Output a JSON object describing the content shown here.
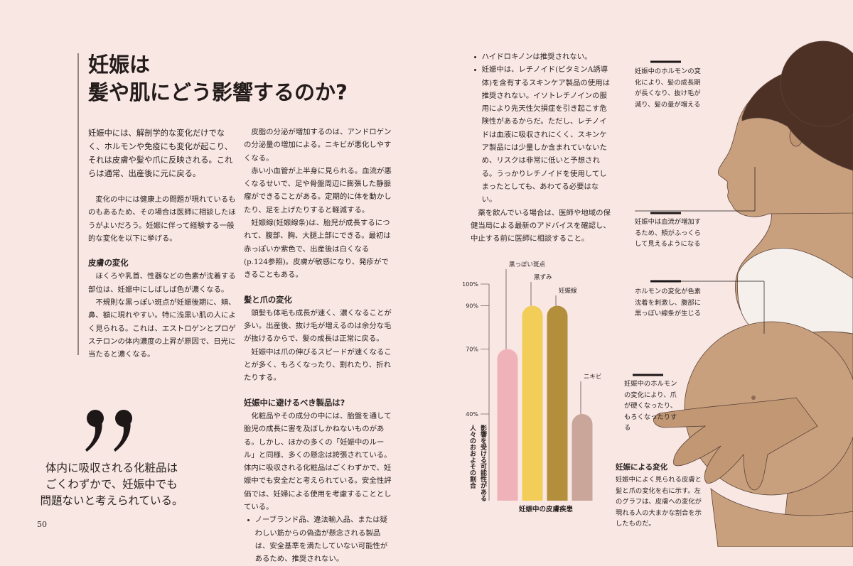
{
  "left_page": {
    "title_lines": [
      "妊娠は",
      "髪や肌にどう影響するのか?"
    ],
    "intro": "妊娠中には、解剖学的な変化だけでなく、ホルモンや免疫にも変化が起こり、それは皮膚や髪や爪に反映される。これらは通常、出産後に元に戻る。",
    "columns": [
      [
        {
          "paragraph": "変化の中には健康上の問題が現れているものもあるため、その場合は医師に相談したほうがよいだろう。妊娠に伴って経験する一般的な変化を以下に挙げる。"
        },
        {
          "heading": "皮膚の変化"
        },
        {
          "paragraph": "ほくろや乳首、性器などの色素が沈着する部位は、妊娠中にしばしば色が濃くなる。"
        },
        {
          "paragraph": "不規則な黒っぽい斑点が妊娠後期に、頬、鼻、額に現れやすい。特に浅黒い肌の人によく見られる。これは、エストロゲンとプロゲステロンの体内濃度の上昇が原因で、日光に当たると濃くなる。"
        }
      ],
      [
        {
          "paragraph": "皮脂の分泌が増加するのは、アンドロゲンの分泌量の増加による。ニキビが悪化しやすくなる。"
        },
        {
          "paragraph": "赤い小血管が上半身に見られる。血流が悪くなるせいで、足や骨盤周辺に膨張した静脈瘤ができることがある。定期的に体を動かしたり、足を上げたりすると軽減する。"
        },
        {
          "paragraph": "妊娠線(妊娠線条)は、胎児が成長するにつれて、腹部、胸、大腿上部にできる。最初は赤っぽいか紫色で、出産後は白くなる(p.124参照)。皮膚が敏感になり、発疹ができることもある。"
        },
        {
          "heading": "髪と爪の変化"
        },
        {
          "paragraph": "頭髪も体毛も成長が速く、濃くなることが多い。出産後、抜け毛が増えるのは余分な毛が抜けるからで、髪の成長は正常に戻る。"
        },
        {
          "paragraph": "妊娠中は爪の伸びるスピードが速くなることが多く、もろくなったり、割れたり、折れたりする。"
        },
        {
          "heading": "妊娠中に避けるべき製品は?"
        },
        {
          "paragraph": "化粧品やその成分の中には、胎盤を通して胎児の成長に害を及ぼしかねないものがある。しかし、ほかの多くの「妊娠中のルール」と同様、多くの懸念は誇張されている。体内に吸収される化粧品はごくわずかで、妊娠中でも安全だと考えられている。安全性評価では、妊婦による使用を考慮することとしている。"
        },
        {
          "bullet": "ノーブランド品、違法輸入品、または疑わしい筋からの偽造が懸念される製品は、安全基準を満たしていない可能性があるため、推奨されない。"
        }
      ]
    ],
    "pull_quote": [
      "体内に吸収される化粧品は",
      "ごくわずかで、妊娠中でも",
      "問題ないと考えられている。"
    ],
    "page_number": "50"
  },
  "right_page": {
    "column": [
      {
        "bullet": "ハイドロキノンは推奨されない。"
      },
      {
        "bullet": "妊娠中は、レチノイド(ビタミンA誘導体)を含有するスキンケア製品の使用は推奨されない。イソトレチノインの服用により先天性欠損症を引き起こす危険性があるからだ。ただし、レチノイドは血液に吸収されにくく、スキンケア製品には少量しか含まれていないため、リスクは非常に低いと予想される。うっかりレチノイドを使用してしまったとしても、あわてる必要はない。"
      },
      {
        "paragraph": "薬を飲んでいる場合は、医師や地域の保健当局による最新のアドバイスを確認し、中止する前に医師に相談すること。"
      }
    ],
    "annotations": [
      "妊娠中のホルモンの変化により、髪の成長期が長くなり、抜け毛が減り、髪の量が増える",
      "妊娠中は血流が増加するため、頬がふっくらして見えるようになる",
      "ホルモンの変化が色素沈着を刺激し、腹部に黒っぽい線条が生じる",
      "妊娠中のホルモンの変化により、爪が硬くなったり、もろくなったりする"
    ],
    "caption": {
      "heading": "妊娠による変化",
      "text": "妊娠中によく見られる皮膚と髪と爪の変化を右に示す。左のグラフは、皮膚への変化が現れる人の大まかな割合を示したものだ。"
    }
  },
  "chart_data": {
    "type": "bar",
    "x_label": "妊娠中の皮膚疾患",
    "y_label": "影響を受ける可能性がある人々のおおよその割合",
    "categories": [
      "黒っぽい斑点",
      "黒ずみ",
      "妊娠線",
      "ニキビ"
    ],
    "values": [
      70,
      90,
      90,
      40
    ],
    "colors": [
      "#efb2b8",
      "#f2cd58",
      "#b38f3b",
      "#c9a699"
    ],
    "ylim": [
      0,
      100
    ],
    "yticks": [
      {
        "value": 40,
        "label": "40%"
      },
      {
        "value": 70,
        "label": "70%"
      },
      {
        "value": 90,
        "label": "90%"
      },
      {
        "value": 100,
        "label": "100%"
      }
    ]
  }
}
